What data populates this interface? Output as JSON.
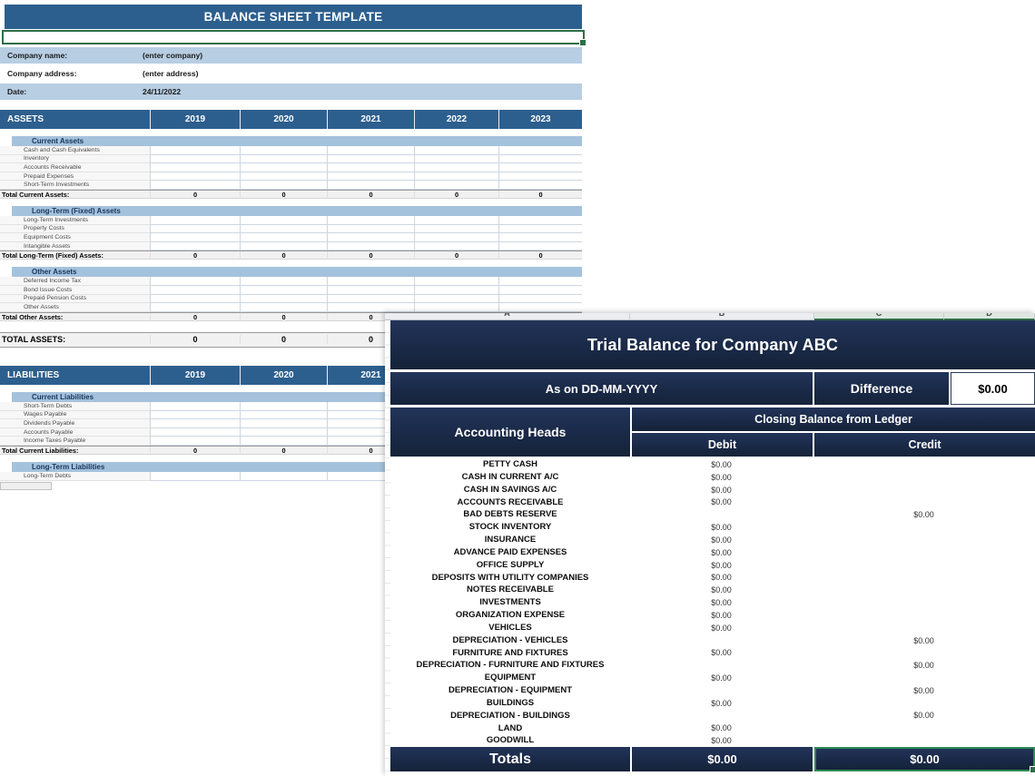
{
  "colors": {
    "steel_blue_header": "#2d5f8e",
    "light_blue_section": "#a5c2dc",
    "light_blue_info": "#b7cee3",
    "navy_header": "#1b2a4a",
    "selection_green": "#2c6e49"
  },
  "balance_sheet": {
    "title": "BALANCE SHEET TEMPLATE",
    "info_rows": [
      {
        "label": "Company name:",
        "value": "(enter company)"
      },
      {
        "label": "Company address:",
        "value": "(enter address)"
      },
      {
        "label": "Date:",
        "value": "24/11/2022"
      }
    ],
    "assets": {
      "header": "ASSETS",
      "years": [
        "2019",
        "2020",
        "2021",
        "2022",
        "2023"
      ],
      "sections": [
        {
          "name": "Current Assets",
          "items": [
            "Cash and Cash Equivalents",
            "Inventory",
            "Accounts Receivable",
            "Prepaid Expenses",
            "Short-Term Investments"
          ],
          "total_label": "Total Current Assets:",
          "totals": [
            "0",
            "0",
            "0",
            "0",
            "0"
          ]
        },
        {
          "name": "Long-Term (Fixed) Assets",
          "items": [
            "Long-Term Investments",
            "Property Costs",
            "Equipment Costs",
            "Intangible Assets"
          ],
          "total_label": "Total Long-Term (Fixed) Assets:",
          "totals": [
            "0",
            "0",
            "0",
            "0",
            "0"
          ]
        },
        {
          "name": "Other Assets",
          "items": [
            "Deferred Income Tax",
            "Bond Issue Costs",
            "Prepaid Pension Costs",
            "Other Assets"
          ],
          "total_label": "Total Other Assets:",
          "totals": [
            "0",
            "0",
            "0"
          ]
        }
      ],
      "grand_total_label": "TOTAL ASSETS:",
      "grand_totals": [
        "0",
        "0",
        "0"
      ]
    },
    "liabilities": {
      "header": "LIABILITIES",
      "years": [
        "2019",
        "2020",
        "2021"
      ],
      "sections": [
        {
          "name": "Current Liabilities",
          "items": [
            "Short-Term Debts",
            "Wages Payable",
            "Dividends Payable",
            "Accounts Payable",
            "Income Taxes Payable"
          ],
          "total_label": "Total Current Liabilities:",
          "totals": [
            "0",
            "0",
            "0"
          ]
        },
        {
          "name": "Long-Term Liabilities",
          "items": [
            "Long-Term Debts"
          ],
          "total_label": "",
          "totals": []
        }
      ]
    }
  },
  "trial_balance": {
    "column_letters": [
      "A",
      "B",
      "C",
      "D"
    ],
    "title": "Trial Balance for Company ABC",
    "as_on": "As on DD-MM-YYYY",
    "difference_label": "Difference",
    "difference_value": "$0.00",
    "accounting_heads_label": "Accounting Heads",
    "closing_balance_label": "Closing Balance from Ledger",
    "debit_label": "Debit",
    "credit_label": "Credit",
    "rows": [
      {
        "label": "PETTY CASH",
        "debit": "$0.00",
        "credit": ""
      },
      {
        "label": "CASH IN CURRENT A/C",
        "debit": "$0.00",
        "credit": ""
      },
      {
        "label": "CASH IN SAVINGS A/C",
        "debit": "$0.00",
        "credit": ""
      },
      {
        "label": "ACCOUNTS RECEIVABLE",
        "debit": "$0.00",
        "credit": ""
      },
      {
        "label": "BAD DEBTS RESERVE",
        "debit": "",
        "credit": "$0.00"
      },
      {
        "label": "STOCK INVENTORY",
        "debit": "$0.00",
        "credit": ""
      },
      {
        "label": "INSURANCE",
        "debit": "$0.00",
        "credit": ""
      },
      {
        "label": "ADVANCE PAID EXPENSES",
        "debit": "$0.00",
        "credit": ""
      },
      {
        "label": "OFFICE SUPPLY",
        "debit": "$0.00",
        "credit": ""
      },
      {
        "label": "DEPOSITS WITH UTILITY COMPANIES",
        "debit": "$0.00",
        "credit": ""
      },
      {
        "label": "NOTES RECEIVABLE",
        "debit": "$0.00",
        "credit": ""
      },
      {
        "label": "INVESTMENTS",
        "debit": "$0.00",
        "credit": ""
      },
      {
        "label": "ORGANIZATION EXPENSE",
        "debit": "$0.00",
        "credit": ""
      },
      {
        "label": "VEHICLES",
        "debit": "$0.00",
        "credit": ""
      },
      {
        "label": "DEPRECIATION - VEHICLES",
        "debit": "",
        "credit": "$0.00"
      },
      {
        "label": "FURNITURE AND FIXTURES",
        "debit": "$0.00",
        "credit": ""
      },
      {
        "label": "DEPRECIATION - FURNITURE AND FIXTURES",
        "debit": "",
        "credit": "$0.00"
      },
      {
        "label": "EQUIPMENT",
        "debit": "$0.00",
        "credit": ""
      },
      {
        "label": "DEPRECIATION - EQUIPMENT",
        "debit": "",
        "credit": "$0.00"
      },
      {
        "label": "BUILDINGS",
        "debit": "$0.00",
        "credit": ""
      },
      {
        "label": "DEPRECIATION - BUILDINGS",
        "debit": "",
        "credit": "$0.00"
      },
      {
        "label": "LAND",
        "debit": "$0.00",
        "credit": ""
      },
      {
        "label": "GOODWILL",
        "debit": "$0.00",
        "credit": ""
      }
    ],
    "totals_label": "Totals",
    "totals_debit": "$0.00",
    "totals_credit": "$0.00"
  }
}
